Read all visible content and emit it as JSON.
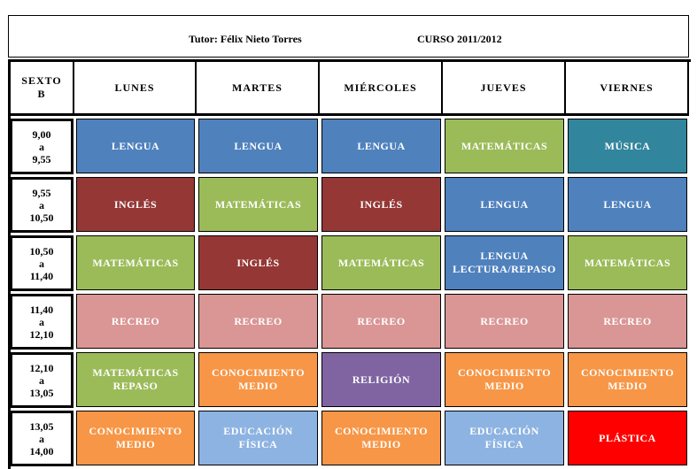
{
  "header": {
    "tutor": "Tutor: Félix Nieto Torres",
    "curso": "CURSO 2011/2012"
  },
  "corner": {
    "line1": "SEXTO",
    "line2": "B"
  },
  "days": [
    "LUNES",
    "MARTES",
    "MIÉRCOLES",
    "JUEVES",
    "VIERNES"
  ],
  "colors": {
    "blue": "#4f81bd",
    "green": "#9bbb59",
    "teal": "#31859c",
    "maroon": "#953735",
    "pink": "#d99694",
    "purple": "#8064a2",
    "orange": "#f79646",
    "lightblue": "#8db3e2",
    "red": "#ff0000"
  },
  "rows": [
    {
      "time": [
        "9,00",
        "a",
        "9,55"
      ],
      "cells": [
        {
          "label": [
            "LENGUA"
          ],
          "color": "blue"
        },
        {
          "label": [
            "LENGUA"
          ],
          "color": "blue"
        },
        {
          "label": [
            "LENGUA"
          ],
          "color": "blue"
        },
        {
          "label": [
            "MATEMÁTICAS"
          ],
          "color": "green"
        },
        {
          "label": [
            "MÚSICA"
          ],
          "color": "teal"
        }
      ]
    },
    {
      "time": [
        "9,55",
        "a",
        "10,50"
      ],
      "cells": [
        {
          "label": [
            "INGLÉS"
          ],
          "color": "maroon"
        },
        {
          "label": [
            "MATEMÁTICAS"
          ],
          "color": "green"
        },
        {
          "label": [
            "INGLÉS"
          ],
          "color": "maroon"
        },
        {
          "label": [
            "LENGUA"
          ],
          "color": "blue"
        },
        {
          "label": [
            "LENGUA"
          ],
          "color": "blue"
        }
      ]
    },
    {
      "time": [
        "10,50",
        "a",
        "11,40"
      ],
      "cells": [
        {
          "label": [
            "MATEMÁTICAS"
          ],
          "color": "green"
        },
        {
          "label": [
            "INGLÉS"
          ],
          "color": "maroon"
        },
        {
          "label": [
            "MATEMÁTICAS"
          ],
          "color": "green"
        },
        {
          "label": [
            "LENGUA",
            "LECTURA/REPASO"
          ],
          "color": "blue"
        },
        {
          "label": [
            "MATEMÁTICAS"
          ],
          "color": "green"
        }
      ]
    },
    {
      "time": [
        "11,40",
        "a",
        "12,10"
      ],
      "cells": [
        {
          "label": [
            "RECREO"
          ],
          "color": "pink"
        },
        {
          "label": [
            "RECREO"
          ],
          "color": "pink"
        },
        {
          "label": [
            "RECREO"
          ],
          "color": "pink"
        },
        {
          "label": [
            "RECREO"
          ],
          "color": "pink"
        },
        {
          "label": [
            "RECREO"
          ],
          "color": "pink"
        }
      ]
    },
    {
      "time": [
        "12,10",
        "a",
        "13,05"
      ],
      "cells": [
        {
          "label": [
            "MATEMÁTICAS",
            "REPASO"
          ],
          "color": "green"
        },
        {
          "label": [
            "CONOCIMIENTO",
            "MEDIO"
          ],
          "color": "orange"
        },
        {
          "label": [
            "RELIGIÓN"
          ],
          "color": "purple"
        },
        {
          "label": [
            "CONOCIMIENTO",
            "MEDIO"
          ],
          "color": "orange"
        },
        {
          "label": [
            "CONOCIMIENTO",
            "MEDIO"
          ],
          "color": "orange"
        }
      ]
    },
    {
      "time": [
        "13,05",
        "a",
        "14,00"
      ],
      "cells": [
        {
          "label": [
            "CONOCIMIENTO",
            "MEDIO"
          ],
          "color": "orange"
        },
        {
          "label": [
            "EDUCACIÓN",
            "FÍSICA"
          ],
          "color": "lightblue"
        },
        {
          "label": [
            "CONOCIMIENTO",
            "MEDIO"
          ],
          "color": "orange"
        },
        {
          "label": [
            "EDUCACIÓN",
            "FÍSICA"
          ],
          "color": "lightblue"
        },
        {
          "label": [
            "PLÁSTICA"
          ],
          "color": "red"
        }
      ]
    }
  ]
}
